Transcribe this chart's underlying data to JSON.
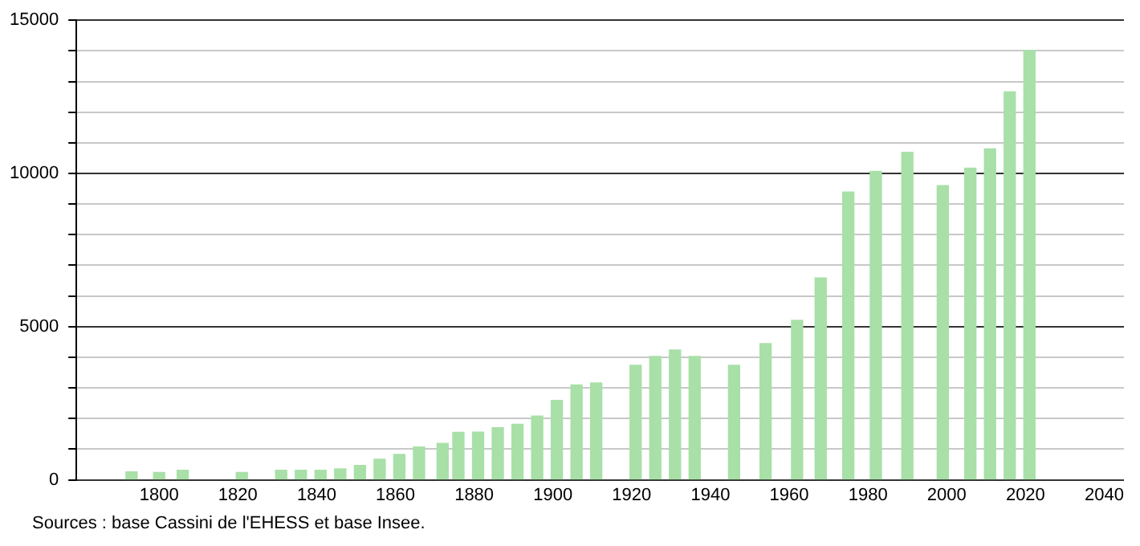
{
  "chart_data": {
    "type": "bar",
    "x": [
      1793,
      1800,
      1806,
      1821,
      1831,
      1836,
      1841,
      1846,
      1851,
      1856,
      1861,
      1866,
      1872,
      1876,
      1881,
      1886,
      1891,
      1896,
      1901,
      1906,
      1911,
      1921,
      1926,
      1931,
      1936,
      1946,
      1954,
      1962,
      1968,
      1975,
      1982,
      1990,
      1999,
      2006,
      2011,
      2016,
      2021
    ],
    "values": [
      260,
      240,
      310,
      240,
      310,
      310,
      310,
      360,
      470,
      670,
      830,
      1070,
      1190,
      1550,
      1560,
      1700,
      1810,
      2080,
      2590,
      3100,
      3160,
      3740,
      4030,
      4240,
      4030,
      3740,
      4450,
      5210,
      6590,
      9390,
      10070,
      10690,
      9600,
      10170,
      10800,
      12660,
      14010
    ],
    "color": "#a8e0a8",
    "xlim": [
      1779,
      2045
    ],
    "xticks": [
      1800,
      1820,
      1840,
      1860,
      1880,
      1900,
      1920,
      1940,
      1960,
      1980,
      2000,
      2020,
      2040
    ],
    "ylim": [
      0,
      15000
    ],
    "yticks": [
      0,
      {
        "value": 1000,
        "label": null
      },
      {
        "value": 2000,
        "label": null
      },
      {
        "value": 3000,
        "label": null
      },
      {
        "value": 4000,
        "label": null
      },
      5000,
      {
        "value": 6000,
        "label": null
      },
      {
        "value": 7000,
        "label": null
      },
      {
        "value": 8000,
        "label": null
      },
      {
        "value": 9000,
        "label": null
      },
      10000,
      {
        "value": 11000,
        "label": null
      },
      {
        "value": 12000,
        "label": null
      },
      {
        "value": 13000,
        "label": null
      },
      {
        "value": 14000,
        "label": null
      },
      15000
    ],
    "grid": "y",
    "legend": false,
    "annotations": [
      "Sources : base Cassini de l'EHESS et base Insee."
    ]
  }
}
